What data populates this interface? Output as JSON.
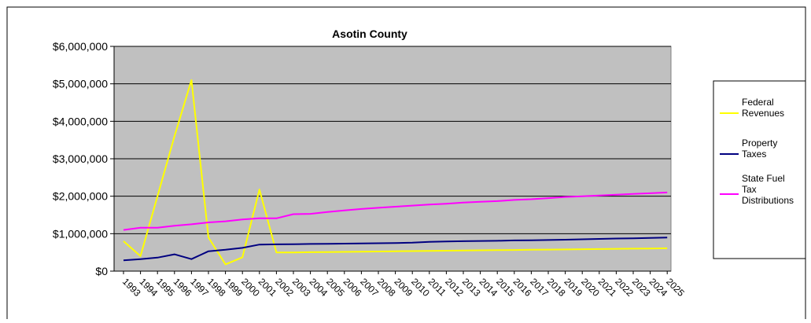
{
  "chart_data": {
    "type": "line",
    "title": "Asotin County",
    "xlabel": "",
    "ylabel": "",
    "x": [
      "1993",
      "1994",
      "1995",
      "1996",
      "1997",
      "1998",
      "1999",
      "2000",
      "2001",
      "2002",
      "2003",
      "2004",
      "2005",
      "2006",
      "2007",
      "2008",
      "2009",
      "2010",
      "2011",
      "2012",
      "2013",
      "2014",
      "2015",
      "2016",
      "2017",
      "2018",
      "2019",
      "2020",
      "2021",
      "2022",
      "2023",
      "2024",
      "2025"
    ],
    "ylim": [
      0,
      6000000
    ],
    "yticks": [
      0,
      1000000,
      2000000,
      3000000,
      4000000,
      5000000,
      6000000
    ],
    "ytick_labels": [
      "$0",
      "$1,000,000",
      "$2,000,000",
      "$3,000,000",
      "$4,000,000",
      "$5,000,000",
      "$6,000,000"
    ],
    "grid": "horizontal",
    "legend_position": "right",
    "plot_background": "#c0c0c0",
    "series": [
      {
        "name": "Federal Revenues",
        "legend_lines": [
          "Federal",
          "Revenues"
        ],
        "color": "#ffff00",
        "values": [
          800000,
          400000,
          2000000,
          3600000,
          5100000,
          900000,
          180000,
          370000,
          2180000,
          500000,
          500000,
          505000,
          510000,
          515000,
          520000,
          525000,
          530000,
          535000,
          540000,
          545000,
          550000,
          555000,
          560000,
          565000,
          570000,
          575000,
          580000,
          585000,
          590000,
          595000,
          600000,
          605000,
          610000
        ]
      },
      {
        "name": "Property Taxes",
        "legend_lines": [
          "Property",
          "Taxes"
        ],
        "color": "#000080",
        "values": [
          290000,
          320000,
          360000,
          450000,
          320000,
          530000,
          570000,
          620000,
          710000,
          715000,
          720000,
          725000,
          730000,
          735000,
          740000,
          745000,
          750000,
          760000,
          780000,
          790000,
          800000,
          805000,
          810000,
          820000,
          825000,
          830000,
          840000,
          850000,
          860000,
          870000,
          875000,
          885000,
          895000
        ]
      },
      {
        "name": "State Fuel Tax Distributions",
        "legend_lines": [
          "State Fuel",
          "Tax",
          "Distributions"
        ],
        "color": "#ff00ff",
        "values": [
          1100000,
          1160000,
          1160000,
          1210000,
          1250000,
          1300000,
          1330000,
          1380000,
          1410000,
          1410000,
          1520000,
          1530000,
          1580000,
          1620000,
          1660000,
          1690000,
          1720000,
          1750000,
          1780000,
          1800000,
          1830000,
          1850000,
          1870000,
          1900000,
          1920000,
          1950000,
          1980000,
          2000000,
          2020000,
          2040000,
          2060000,
          2080000,
          2100000
        ]
      }
    ]
  }
}
